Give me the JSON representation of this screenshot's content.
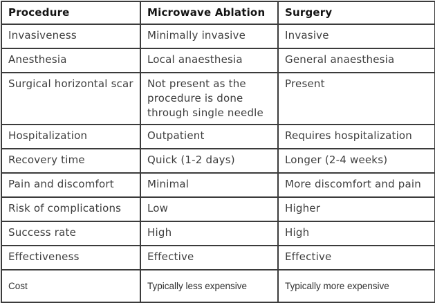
{
  "colors": {
    "border": "#3b3b3b",
    "body_text": "#3d3d3d",
    "header_text": "#131313",
    "background": "#ffffff"
  },
  "table": {
    "headers": [
      "Procedure",
      "Microwave Ablation",
      "Surgery"
    ],
    "rows": [
      [
        "Invasiveness",
        "Minimally invasive",
        "Invasive"
      ],
      [
        "Anesthesia",
        "Local anaesthesia",
        "General anaesthesia"
      ],
      [
        "Surgical horizontal scar",
        "Not present as the procedure is done through single needle",
        "Present"
      ],
      [
        "Hospitalization",
        "Outpatient",
        "Requires hospitalization"
      ],
      [
        "Recovery time",
        "Quick (1-2 days)",
        "Longer (2-4 weeks)"
      ],
      [
        "Pain and discomfort",
        "Minimal",
        "More discomfort and pain"
      ],
      [
        "Risk of complications",
        "Low",
        "Higher"
      ],
      [
        "Success rate",
        "High",
        "High"
      ],
      [
        "Effectiveness",
        "Effective",
        "Effective"
      ],
      [
        "Cost",
        "Typically less expensive",
        "Typically more expensive"
      ]
    ]
  }
}
